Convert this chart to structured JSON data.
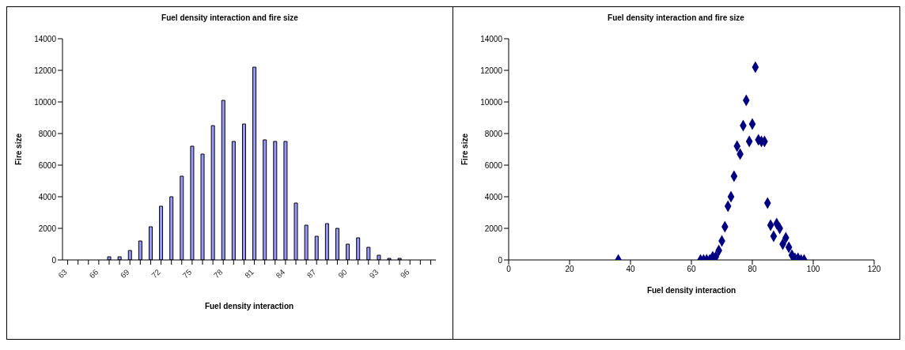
{
  "chart_data": [
    {
      "type": "bar",
      "title": "Fuel density interaction and fire size",
      "xlabel": "Fuel density interaction",
      "ylabel": "Fire size",
      "categories": [
        "63",
        null,
        null,
        "66",
        null,
        null,
        "69",
        null,
        null,
        "72",
        null,
        null,
        "75",
        null,
        null,
        "78",
        null,
        null,
        "81",
        null,
        null,
        "84",
        null,
        null,
        "87",
        null,
        null,
        "90",
        null,
        null,
        "93",
        null,
        null,
        "96",
        null,
        null
      ],
      "values": [
        0,
        0,
        0,
        0,
        200,
        200,
        600,
        1200,
        2100,
        3400,
        4000,
        5300,
        7200,
        6700,
        8500,
        10100,
        7500,
        8600,
        12200,
        7600,
        7500,
        7500,
        3600,
        2200,
        1500,
        2300,
        2000,
        1000,
        1400,
        800,
        300,
        100,
        100,
        0,
        0,
        0
      ],
      "color": "#9999ff",
      "ylim": [
        0,
        14000
      ],
      "yticks": [
        0,
        2000,
        4000,
        6000,
        8000,
        10000,
        12000,
        14000
      ],
      "grid": false,
      "legend": false
    },
    {
      "type": "scatter",
      "title": "Fuel density interaction and fire size",
      "xlabel": "Fuel density interaction",
      "ylabel": "Fire size",
      "x": [
        36,
        63,
        64,
        65,
        66,
        67,
        68,
        69,
        70,
        71,
        72,
        73,
        74,
        75,
        76,
        77,
        78,
        79,
        80,
        81,
        82,
        83,
        84,
        85,
        86,
        87,
        88,
        89,
        90,
        91,
        92,
        93,
        94,
        95,
        96,
        97
      ],
      "values": [
        0,
        0,
        0,
        0,
        0,
        200,
        200,
        600,
        1200,
        2100,
        3400,
        4000,
        5300,
        7200,
        6700,
        8500,
        10100,
        7500,
        8600,
        12200,
        7600,
        7500,
        7500,
        3600,
        2200,
        1500,
        2300,
        2000,
        1000,
        1400,
        800,
        300,
        100,
        100,
        0,
        0
      ],
      "color": "#000080",
      "marker": "diamond",
      "xlim": [
        0,
        120
      ],
      "xticks": [
        0,
        20,
        40,
        60,
        80,
        100,
        120
      ],
      "ylim": [
        0,
        14000
      ],
      "yticks": [
        0,
        2000,
        4000,
        6000,
        8000,
        10000,
        12000,
        14000
      ],
      "grid": false,
      "legend": false
    }
  ]
}
